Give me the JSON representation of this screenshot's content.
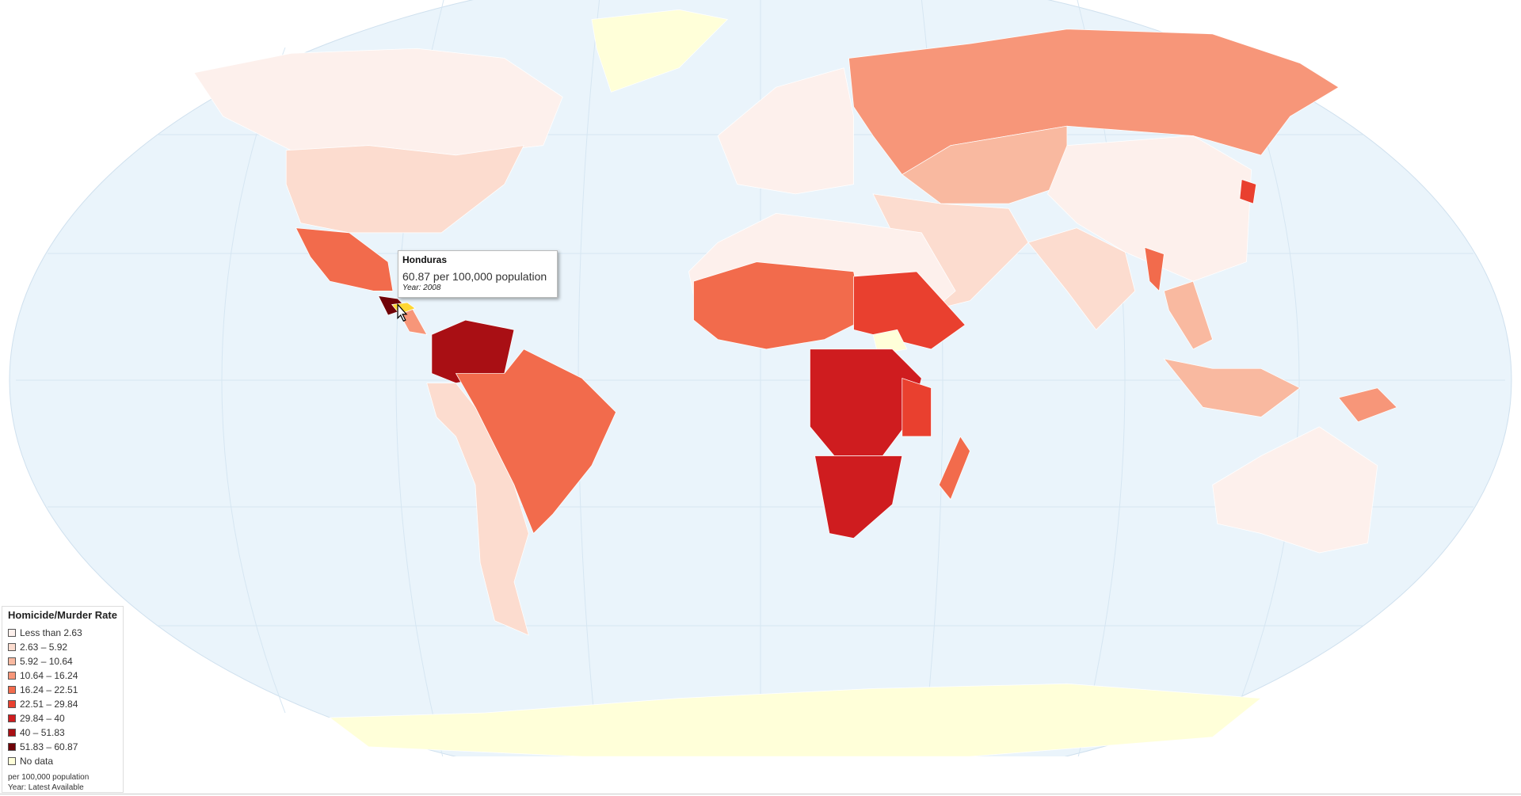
{
  "legend": {
    "title": "Homicide/Murder Rate",
    "items": [
      {
        "label": "Less than 2.63",
        "color": "#fdf0ec"
      },
      {
        "label": "2.63 – 5.92",
        "color": "#fcdccf"
      },
      {
        "label": "5.92 – 10.64",
        "color": "#f9b9a0"
      },
      {
        "label": "10.64 – 16.24",
        "color": "#f79679"
      },
      {
        "label": "16.24 – 22.51",
        "color": "#f26b4c"
      },
      {
        "label": "22.51 – 29.84",
        "color": "#e9402f"
      },
      {
        "label": "29.84 – 40",
        "color": "#cf1c1f"
      },
      {
        "label": "40 – 51.83",
        "color": "#a90f14"
      },
      {
        "label": "51.83 – 60.87",
        "color": "#6f0208"
      },
      {
        "label": "No data",
        "color": "#ffffd9"
      }
    ],
    "notes": [
      "per 100,000 population",
      "Year: Latest Available"
    ]
  },
  "tooltip": {
    "country": "Honduras",
    "value": "60.87 per 100,000 population",
    "year": "Year: 2008"
  }
}
